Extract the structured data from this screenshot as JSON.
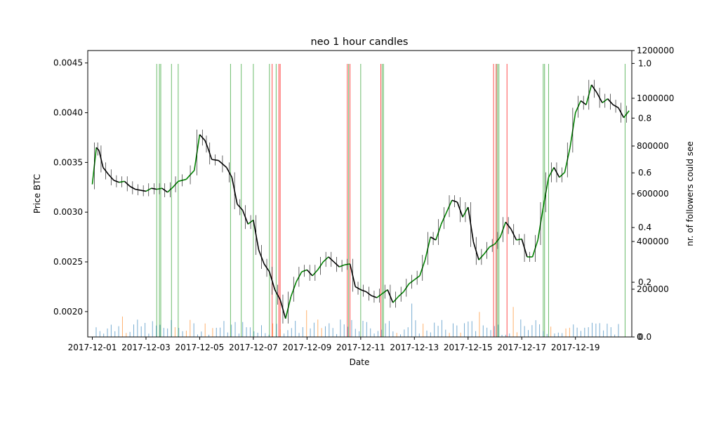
{
  "chart_data": {
    "type": "line",
    "title": "neo 1 hour candles",
    "xlabel": "Date",
    "ylabel": "Price BTC",
    "y2label": "nr. of followers could see",
    "xticks": [
      "2017-12-01",
      "2017-12-03",
      "2017-12-05",
      "2017-12-07",
      "2017-12-09",
      "2017-12-11",
      "2017-12-13",
      "2017-12-15",
      "2017-12-17",
      "2017-12-19"
    ],
    "xlim": [
      -0.17,
      20.1
    ],
    "ylim": [
      0.001745,
      0.004625
    ],
    "yticks": [
      "0.0020",
      "0.0025",
      "0.0030",
      "0.0035",
      "0.0040",
      "0.0045"
    ],
    "y2ticks_followers": [
      "0",
      "200000",
      "400000",
      "600000",
      "800000",
      "1000000",
      "1200000"
    ],
    "y2lim_followers": [
      0,
      1200000
    ],
    "y2ticks_fraction": [
      "0.0",
      "0.2",
      "0.4",
      "0.6",
      "0.8",
      "1.0"
    ],
    "grid": false,
    "colors": {
      "price_up": "#008000",
      "price_down": "#000000",
      "buy_signal": "#2ca02c",
      "sell_signal": "#ff0000",
      "volume_blue": "#1f77b4",
      "volume_orange": "#ff7f0e"
    },
    "price_series": {
      "x": [
        0.0,
        0.15,
        0.25,
        0.4,
        0.6,
        0.8,
        1.0,
        1.2,
        1.4,
        1.6,
        1.8,
        2.0,
        2.2,
        2.4,
        2.6,
        2.8,
        3.0,
        3.2,
        3.5,
        3.8,
        4.0,
        4.2,
        4.3,
        4.45,
        4.7,
        5.0,
        5.2,
        5.4,
        5.6,
        5.8,
        6.0,
        6.2,
        6.4,
        6.6,
        6.8,
        7.0,
        7.2,
        7.4,
        7.6,
        7.8,
        8.0,
        8.2,
        8.4,
        8.6,
        8.8,
        9.0,
        9.2,
        9.4,
        9.6,
        9.8,
        10.0,
        10.2,
        10.4,
        10.6,
        10.8,
        11.0,
        11.2,
        11.4,
        11.6,
        11.8,
        12.0,
        12.2,
        12.4,
        12.6,
        12.8,
        13.0,
        13.2,
        13.4,
        13.6,
        13.8,
        14.0,
        14.2,
        14.4,
        14.6,
        14.8,
        15.0,
        15.2,
        15.4,
        15.6,
        15.8,
        16.0,
        16.2,
        16.4,
        16.6,
        16.8,
        17.0,
        17.2,
        17.4,
        17.6,
        17.8,
        18.0,
        18.2,
        18.4,
        18.6,
        18.8,
        19.0,
        19.2,
        19.4,
        19.6,
        19.8,
        20.0
      ],
      "y": [
        0.00328,
        0.00365,
        0.00362,
        0.00345,
        0.00338,
        0.00332,
        0.0033,
        0.00331,
        0.00326,
        0.00323,
        0.00322,
        0.00321,
        0.00324,
        0.00323,
        0.00324,
        0.0032,
        0.00325,
        0.00331,
        0.00333,
        0.00342,
        0.00378,
        0.00372,
        0.00365,
        0.00353,
        0.00352,
        0.00345,
        0.00335,
        0.00308,
        0.00302,
        0.00288,
        0.00292,
        0.00262,
        0.00248,
        0.0024,
        0.00222,
        0.00212,
        0.00193,
        0.00215,
        0.0023,
        0.0024,
        0.00242,
        0.00236,
        0.00242,
        0.0025,
        0.00255,
        0.0025,
        0.00245,
        0.00247,
        0.00248,
        0.00225,
        0.00222,
        0.0022,
        0.00216,
        0.00214,
        0.00218,
        0.00222,
        0.00209,
        0.00215,
        0.0022,
        0.00228,
        0.00232,
        0.00236,
        0.00252,
        0.00275,
        0.00272,
        0.00288,
        0.003,
        0.00312,
        0.0031,
        0.00295,
        0.00305,
        0.0027,
        0.00252,
        0.00258,
        0.00265,
        0.00268,
        0.00275,
        0.0029,
        0.00283,
        0.00272,
        0.00273,
        0.00255,
        0.00255,
        0.00272,
        0.00305,
        0.00335,
        0.00345,
        0.00335,
        0.0034,
        0.00365,
        0.004,
        0.00412,
        0.00408,
        0.00428,
        0.0042,
        0.0041,
        0.00414,
        0.00408,
        0.00405,
        0.00395,
        0.00402
      ]
    },
    "buy_lines": [
      2.4,
      2.5,
      2.55,
      2.95,
      3.2,
      5.15,
      5.55,
      6.0,
      6.6,
      6.85,
      9.55,
      10.0,
      10.8,
      10.85,
      15.05,
      15.1,
      15.15,
      16.8,
      16.85,
      17.0,
      19.85
    ],
    "sell_lines": [
      6.7,
      6.95,
      7.0,
      9.5,
      9.6,
      10.75,
      14.95,
      15.05,
      15.45
    ]
  }
}
